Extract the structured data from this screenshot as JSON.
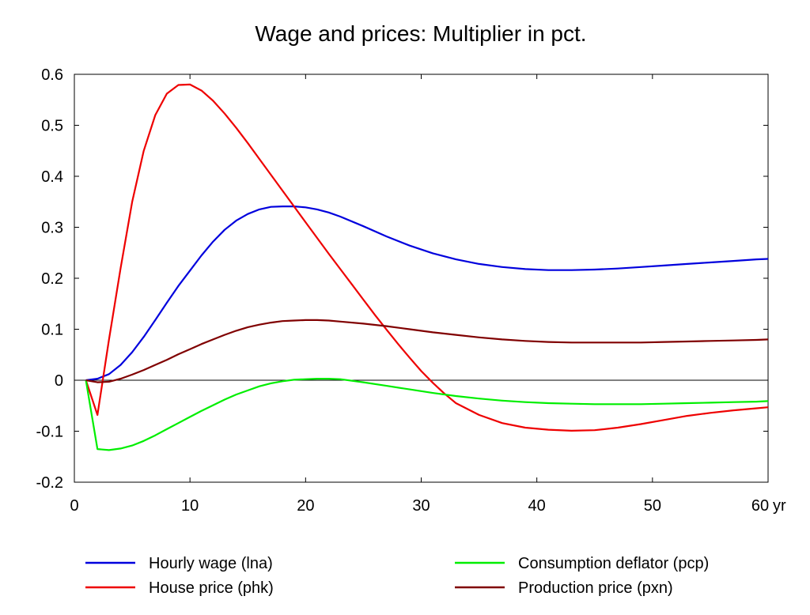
{
  "chart_data": {
    "type": "line",
    "title": "Wage and prices: Multiplier in pct.",
    "xlabel": "",
    "ylabel": "",
    "xlim": [
      0,
      60
    ],
    "ylim": [
      -0.2,
      0.6
    ],
    "xticks": [
      0,
      10,
      20,
      30,
      40,
      50,
      60
    ],
    "xtick_labels": [
      "0",
      "10",
      "20",
      "30",
      "40",
      "50",
      "60"
    ],
    "x_unit_label": "yr",
    "yticks": [
      -0.2,
      -0.1,
      0,
      0.1,
      0.2,
      0.3,
      0.4,
      0.5,
      0.6
    ],
    "ytick_labels": [
      "-0.2",
      "-0.1",
      "0",
      "0.1",
      "0.2",
      "0.3",
      "0.4",
      "0.5",
      "0.6"
    ],
    "zero_line": true,
    "grid": false,
    "legend_position": "bottom",
    "series": [
      {
        "name": "Hourly wage (lna)",
        "color": "#0000dd",
        "points": [
          [
            1,
            0
          ],
          [
            2,
            0.003
          ],
          [
            3,
            0.012
          ],
          [
            4,
            0.03
          ],
          [
            5,
            0.055
          ],
          [
            6,
            0.085
          ],
          [
            7,
            0.118
          ],
          [
            8,
            0.152
          ],
          [
            9,
            0.185
          ],
          [
            10,
            0.215
          ],
          [
            11,
            0.245
          ],
          [
            12,
            0.272
          ],
          [
            13,
            0.295
          ],
          [
            14,
            0.313
          ],
          [
            15,
            0.326
          ],
          [
            16,
            0.335
          ],
          [
            17,
            0.34
          ],
          [
            18,
            0.341
          ],
          [
            19,
            0.341
          ],
          [
            20,
            0.339
          ],
          [
            21,
            0.335
          ],
          [
            22,
            0.329
          ],
          [
            23,
            0.321
          ],
          [
            25,
            0.302
          ],
          [
            27,
            0.282
          ],
          [
            29,
            0.264
          ],
          [
            31,
            0.249
          ],
          [
            33,
            0.237
          ],
          [
            35,
            0.228
          ],
          [
            37,
            0.222
          ],
          [
            39,
            0.218
          ],
          [
            41,
            0.216
          ],
          [
            43,
            0.216
          ],
          [
            45,
            0.217
          ],
          [
            47,
            0.219
          ],
          [
            49,
            0.222
          ],
          [
            51,
            0.225
          ],
          [
            53,
            0.228
          ],
          [
            55,
            0.231
          ],
          [
            57,
            0.234
          ],
          [
            59,
            0.237
          ],
          [
            60,
            0.238
          ]
        ]
      },
      {
        "name": "House price (phk)",
        "color": "#ee0000",
        "points": [
          [
            1,
            0
          ],
          [
            2,
            -0.068
          ],
          [
            3,
            0.08
          ],
          [
            4,
            0.22
          ],
          [
            5,
            0.35
          ],
          [
            6,
            0.45
          ],
          [
            7,
            0.52
          ],
          [
            8,
            0.562
          ],
          [
            9,
            0.579
          ],
          [
            10,
            0.58
          ],
          [
            11,
            0.568
          ],
          [
            12,
            0.548
          ],
          [
            13,
            0.523
          ],
          [
            14,
            0.495
          ],
          [
            15,
            0.465
          ],
          [
            16,
            0.434
          ],
          [
            17,
            0.403
          ],
          [
            18,
            0.372
          ],
          [
            19,
            0.341
          ],
          [
            20,
            0.31
          ],
          [
            21,
            0.279
          ],
          [
            22,
            0.248
          ],
          [
            23,
            0.218
          ],
          [
            24,
            0.188
          ],
          [
            25,
            0.158
          ],
          [
            26,
            0.128
          ],
          [
            27,
            0.099
          ],
          [
            28,
            0.071
          ],
          [
            29,
            0.044
          ],
          [
            30,
            0.018
          ],
          [
            31,
            -0.005
          ],
          [
            32,
            -0.026
          ],
          [
            33,
            -0.045
          ],
          [
            35,
            -0.068
          ],
          [
            37,
            -0.084
          ],
          [
            39,
            -0.093
          ],
          [
            41,
            -0.097
          ],
          [
            43,
            -0.099
          ],
          [
            45,
            -0.098
          ],
          [
            47,
            -0.093
          ],
          [
            49,
            -0.086
          ],
          [
            51,
            -0.078
          ],
          [
            53,
            -0.07
          ],
          [
            55,
            -0.064
          ],
          [
            57,
            -0.059
          ],
          [
            59,
            -0.055
          ],
          [
            60,
            -0.053
          ]
        ]
      },
      {
        "name": "Consumption deflator (pcp)",
        "color": "#00ee00",
        "points": [
          [
            1,
            0
          ],
          [
            2,
            -0.135
          ],
          [
            3,
            -0.137
          ],
          [
            4,
            -0.134
          ],
          [
            5,
            -0.128
          ],
          [
            6,
            -0.119
          ],
          [
            7,
            -0.108
          ],
          [
            8,
            -0.096
          ],
          [
            9,
            -0.084
          ],
          [
            10,
            -0.072
          ],
          [
            11,
            -0.06
          ],
          [
            12,
            -0.049
          ],
          [
            13,
            -0.038
          ],
          [
            14,
            -0.028
          ],
          [
            15,
            -0.02
          ],
          [
            16,
            -0.012
          ],
          [
            17,
            -0.006
          ],
          [
            18,
            -0.002
          ],
          [
            19,
            0.001
          ],
          [
            20,
            0.002
          ],
          [
            21,
            0.003
          ],
          [
            22,
            0.003
          ],
          [
            23,
            0.002
          ],
          [
            25,
            -0.004
          ],
          [
            27,
            -0.011
          ],
          [
            29,
            -0.018
          ],
          [
            31,
            -0.025
          ],
          [
            33,
            -0.031
          ],
          [
            35,
            -0.036
          ],
          [
            37,
            -0.04
          ],
          [
            39,
            -0.043
          ],
          [
            41,
            -0.045
          ],
          [
            43,
            -0.046
          ],
          [
            45,
            -0.047
          ],
          [
            47,
            -0.047
          ],
          [
            49,
            -0.047
          ],
          [
            51,
            -0.046
          ],
          [
            53,
            -0.045
          ],
          [
            55,
            -0.044
          ],
          [
            57,
            -0.043
          ],
          [
            59,
            -0.042
          ],
          [
            60,
            -0.041
          ]
        ]
      },
      {
        "name": "Production price (pxn)",
        "color": "#800000",
        "points": [
          [
            1,
            0
          ],
          [
            2,
            -0.004
          ],
          [
            3,
            -0.003
          ],
          [
            4,
            0.003
          ],
          [
            5,
            0.011
          ],
          [
            6,
            0.02
          ],
          [
            7,
            0.03
          ],
          [
            8,
            0.04
          ],
          [
            9,
            0.051
          ],
          [
            10,
            0.061
          ],
          [
            11,
            0.071
          ],
          [
            12,
            0.08
          ],
          [
            13,
            0.089
          ],
          [
            14,
            0.097
          ],
          [
            15,
            0.104
          ],
          [
            16,
            0.109
          ],
          [
            17,
            0.113
          ],
          [
            18,
            0.116
          ],
          [
            19,
            0.117
          ],
          [
            20,
            0.118
          ],
          [
            21,
            0.118
          ],
          [
            22,
            0.117
          ],
          [
            23,
            0.115
          ],
          [
            25,
            0.111
          ],
          [
            27,
            0.106
          ],
          [
            29,
            0.1
          ],
          [
            31,
            0.094
          ],
          [
            33,
            0.089
          ],
          [
            35,
            0.084
          ],
          [
            37,
            0.08
          ],
          [
            39,
            0.077
          ],
          [
            41,
            0.075
          ],
          [
            43,
            0.074
          ],
          [
            45,
            0.074
          ],
          [
            47,
            0.074
          ],
          [
            49,
            0.074
          ],
          [
            51,
            0.075
          ],
          [
            53,
            0.076
          ],
          [
            55,
            0.077
          ],
          [
            57,
            0.078
          ],
          [
            59,
            0.079
          ],
          [
            60,
            0.08
          ]
        ]
      }
    ]
  }
}
